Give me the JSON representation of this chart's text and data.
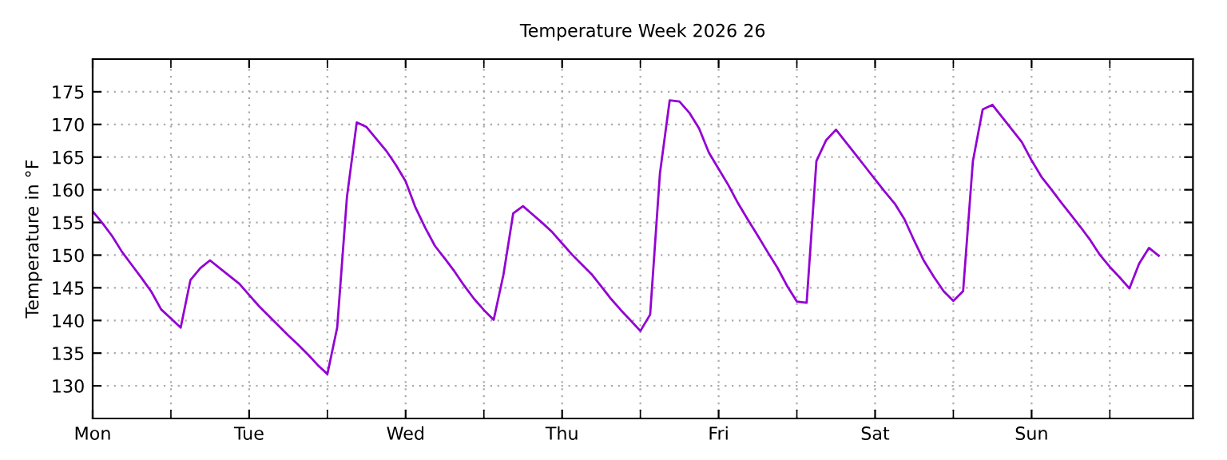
{
  "chart_data": {
    "type": "line",
    "title": "Temperature Week 2026 26",
    "ylabel": "Temperature in °F",
    "categories": [
      "Mon",
      null,
      null,
      null,
      null,
      null,
      null,
      null,
      null,
      null,
      null,
      null,
      null,
      null,
      null,
      null,
      "Tue",
      null,
      null,
      null,
      null,
      null,
      null,
      null,
      null,
      null,
      null,
      null,
      null,
      null,
      null,
      null,
      "Wed",
      null,
      null,
      null,
      null,
      null,
      null,
      null,
      null,
      null,
      null,
      null,
      null,
      null,
      null,
      null,
      "Thu",
      null,
      null,
      null,
      null,
      null,
      null,
      null,
      null,
      null,
      null,
      null,
      null,
      null,
      null,
      null,
      "Fri",
      null,
      null,
      null,
      null,
      null,
      null,
      null,
      null,
      null,
      null,
      null,
      null,
      null,
      null,
      null,
      "Sat",
      null,
      null,
      null,
      null,
      null,
      null,
      null,
      null,
      null,
      null,
      null,
      null,
      null,
      null,
      null,
      "Sun",
      null,
      null,
      null,
      null,
      null,
      null,
      null,
      null,
      null,
      null,
      null,
      null,
      null,
      null,
      null,
      null
    ],
    "series": [
      {
        "color": "#9400d3",
        "values": [
          156.7,
          154.9,
          152.9,
          150.5,
          148.5,
          146.5,
          144.4,
          141.7,
          140.3,
          138.9,
          146.2,
          148.0,
          149.2,
          148.0,
          146.8,
          145.6,
          143.9,
          142.2,
          140.7,
          139.2,
          137.7,
          136.3,
          134.8,
          133.2,
          131.8,
          138.9,
          158.9,
          170.3,
          169.6,
          167.8,
          166.0,
          163.8,
          161.3,
          157.3,
          154.2,
          151.4,
          149.5,
          147.5,
          145.3,
          143.3,
          141.6,
          140.1,
          147.0,
          156.4,
          157.5,
          156.2,
          154.9,
          153.5,
          151.8,
          150.1,
          148.6,
          147.1,
          145.2,
          143.3,
          141.6,
          140.0,
          138.4,
          140.9,
          162.5,
          173.7,
          173.5,
          171.8,
          169.4,
          165.7,
          163.2,
          160.7,
          157.9,
          155.4,
          153.0,
          150.5,
          148.1,
          145.3,
          142.9,
          142.7,
          164.4,
          167.6,
          169.2,
          167.3,
          165.4,
          163.5,
          161.6,
          159.7,
          157.9,
          155.5,
          152.2,
          149.1,
          146.7,
          144.5,
          143.0,
          144.5,
          164.4,
          172.3,
          173.0,
          171.1,
          169.2,
          167.3,
          164.5,
          162.0,
          160.1,
          158.1,
          156.2,
          154.3,
          152.3,
          150.0,
          148.2,
          146.6,
          144.9,
          148.7,
          151.1,
          149.9,
          null,
          null,
          null
        ]
      }
    ],
    "ylim": [
      125,
      180
    ],
    "yticks": [
      130,
      135,
      140,
      145,
      150,
      155,
      160,
      165,
      170,
      175
    ],
    "grid": true,
    "legend": false,
    "marker": "none",
    "line_style": "solid"
  }
}
